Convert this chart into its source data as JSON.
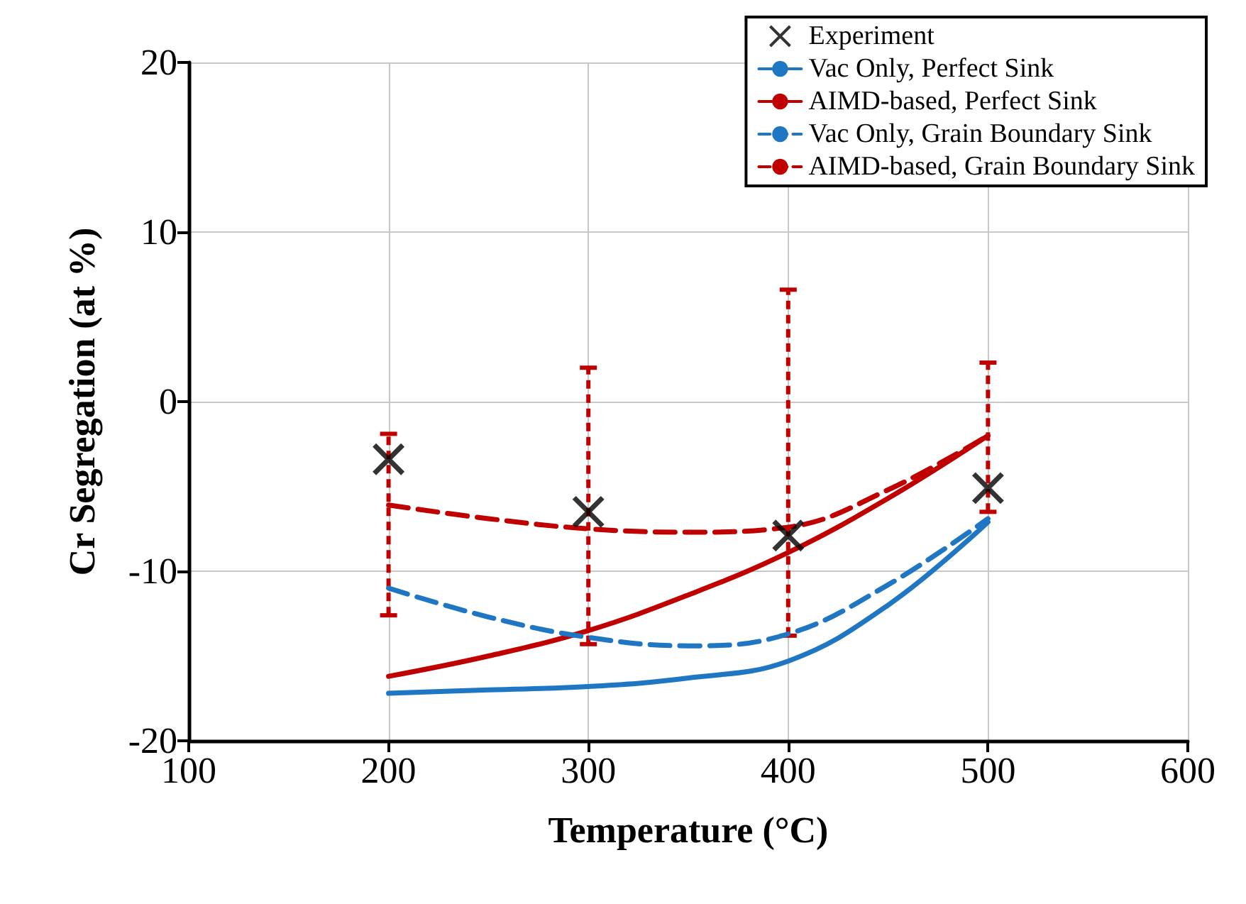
{
  "chart_data": {
    "type": "line",
    "xlabel": "Temperature (°C)",
    "ylabel": "Cr Segregation (at %)",
    "xlim": [
      100,
      600
    ],
    "xticks": [
      100,
      200,
      300,
      400,
      500,
      600
    ],
    "ylim": [
      -20,
      20
    ],
    "yticks": [
      -20,
      -10,
      0,
      10,
      20
    ],
    "grid": true,
    "legend": "top right",
    "series": [
      {
        "name": "Experiment",
        "type": "scatter",
        "marker": "cross",
        "color": "#000000",
        "x": [
          200,
          300,
          400,
          500
        ],
        "values": [
          -3.4,
          -6.5,
          -7.9,
          -5.1
        ]
      },
      {
        "name": "Vac Only, Perfect Sink",
        "line_style": "solid",
        "color": "#1f77c4",
        "x": [
          200,
          250,
          300,
          350,
          400,
          450,
          500
        ],
        "values": [
          -17.2,
          -17.0,
          -16.8,
          -16.3,
          -15.3,
          -12,
          -7.1
        ]
      },
      {
        "name": "AIMD-based, Perfect Sink",
        "line_style": "solid",
        "color": "#c00000",
        "x": [
          200,
          250,
          300,
          350,
          400,
          450,
          500
        ],
        "values": [
          -16.2,
          -15.0,
          -13.5,
          -11.4,
          -8.9,
          -5.7,
          -2.0
        ]
      },
      {
        "name": "Vac Only, Grain Boundary Sink",
        "line_style": "dashed",
        "color": "#1f77c4",
        "x": [
          200,
          250,
          300,
          350,
          400,
          450,
          500
        ],
        "values": [
          -11.0,
          -12.7,
          -13.9,
          -14.4,
          -13.7,
          -10.8,
          -6.9
        ]
      },
      {
        "name": "AIMD-based, Grain Boundary Sink",
        "line_style": "dashed",
        "color": "#c00000",
        "x": [
          200,
          250,
          300,
          350,
          400,
          450,
          500
        ],
        "values": [
          -6.1,
          -6.9,
          -7.5,
          -7.7,
          -7.4,
          -5.2,
          -2.0
        ],
        "errors": [
          [
            -12.6,
            -1.9
          ],
          null,
          [
            -14.3,
            2.0
          ],
          null,
          [
            -13.8,
            6.6
          ],
          null,
          [
            -6.5,
            2.3
          ]
        ]
      }
    ]
  }
}
